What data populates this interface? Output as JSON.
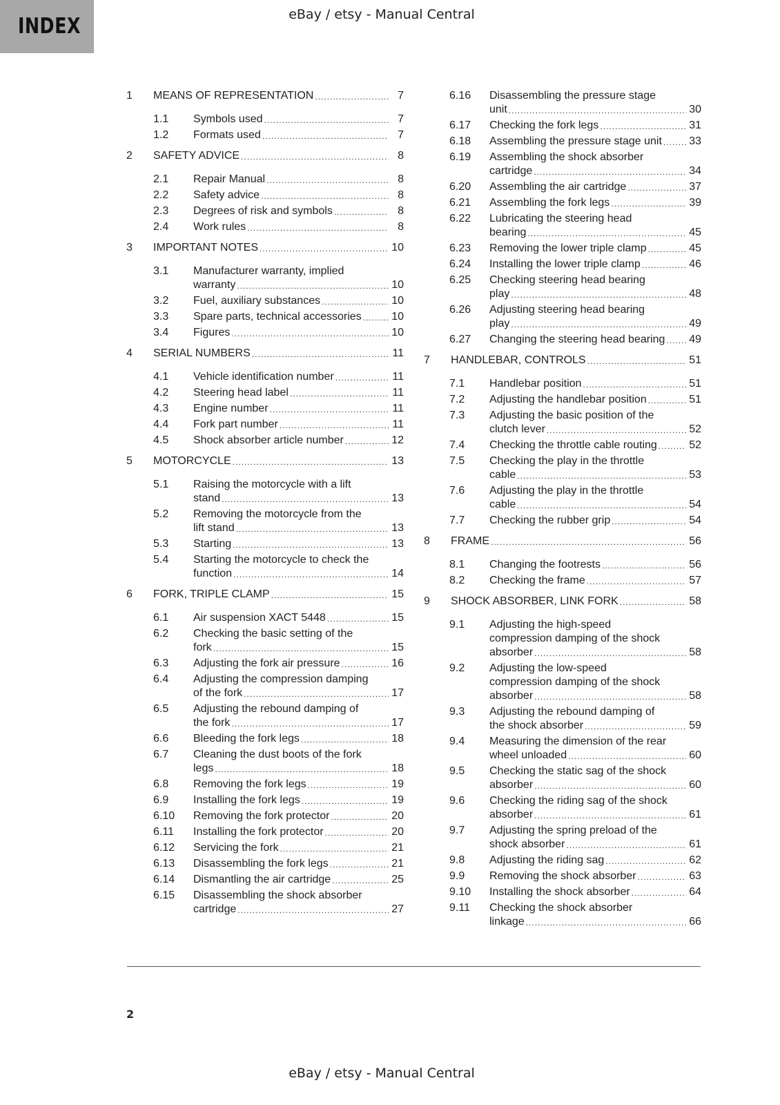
{
  "header": {
    "section_label": "INDEX",
    "watermark": "eBay / etsy - Manual Central"
  },
  "footer": {
    "page_number": "2",
    "watermark": "eBay / etsy - Manual Central"
  },
  "columns": [
    [
      {
        "level": "chapter",
        "num": "1",
        "lines": [
          "MEANS OF REPRESENTATION"
        ],
        "page": "7"
      },
      {
        "level": "sub",
        "num": "1.1",
        "lines": [
          "Symbols used"
        ],
        "page": "7"
      },
      {
        "level": "sub",
        "num": "1.2",
        "lines": [
          "Formats used"
        ],
        "page": "7"
      },
      {
        "level": "chapter",
        "num": "2",
        "lines": [
          "SAFETY ADVICE"
        ],
        "page": "8"
      },
      {
        "level": "sub",
        "num": "2.1",
        "lines": [
          "Repair Manual"
        ],
        "page": "8"
      },
      {
        "level": "sub",
        "num": "2.2",
        "lines": [
          "Safety advice"
        ],
        "page": "8"
      },
      {
        "level": "sub",
        "num": "2.3",
        "lines": [
          "Degrees of risk and symbols"
        ],
        "page": "8"
      },
      {
        "level": "sub",
        "num": "2.4",
        "lines": [
          "Work rules"
        ],
        "page": "8"
      },
      {
        "level": "chapter",
        "num": "3",
        "lines": [
          "IMPORTANT NOTES"
        ],
        "page": "10"
      },
      {
        "level": "sub",
        "num": "3.1",
        "lines": [
          "Manufacturer warranty, implied",
          "warranty"
        ],
        "page": "10"
      },
      {
        "level": "sub",
        "num": "3.2",
        "lines": [
          "Fuel, auxiliary substances"
        ],
        "page": "10"
      },
      {
        "level": "sub",
        "num": "3.3",
        "lines": [
          "Spare parts, technical accessories"
        ],
        "page": "10"
      },
      {
        "level": "sub",
        "num": "3.4",
        "lines": [
          "Figures"
        ],
        "page": "10"
      },
      {
        "level": "chapter",
        "num": "4",
        "lines": [
          "SERIAL NUMBERS"
        ],
        "page": "11"
      },
      {
        "level": "sub",
        "num": "4.1",
        "lines": [
          "Vehicle identification number"
        ],
        "page": "11"
      },
      {
        "level": "sub",
        "num": "4.2",
        "lines": [
          "Steering head label"
        ],
        "page": "11"
      },
      {
        "level": "sub",
        "num": "4.3",
        "lines": [
          "Engine number"
        ],
        "page": "11"
      },
      {
        "level": "sub",
        "num": "4.4",
        "lines": [
          "Fork part number"
        ],
        "page": "11"
      },
      {
        "level": "sub",
        "num": "4.5",
        "lines": [
          "Shock absorber article number"
        ],
        "page": "12"
      },
      {
        "level": "chapter",
        "num": "5",
        "lines": [
          "MOTORCYCLE"
        ],
        "page": "13"
      },
      {
        "level": "sub",
        "num": "5.1",
        "lines": [
          "Raising the motorcycle with a lift",
          "stand"
        ],
        "page": "13"
      },
      {
        "level": "sub",
        "num": "5.2",
        "lines": [
          "Removing the motorcycle from the",
          "lift stand"
        ],
        "page": "13"
      },
      {
        "level": "sub",
        "num": "5.3",
        "lines": [
          "Starting"
        ],
        "page": "13"
      },
      {
        "level": "sub",
        "num": "5.4",
        "lines": [
          "Starting the motorcycle to check the",
          "function"
        ],
        "page": "14"
      },
      {
        "level": "chapter",
        "num": "6",
        "lines": [
          "FORK, TRIPLE CLAMP"
        ],
        "page": "15"
      },
      {
        "level": "sub",
        "num": "6.1",
        "lines": [
          "Air suspension XACT 5448"
        ],
        "page": "15"
      },
      {
        "level": "sub",
        "num": "6.2",
        "lines": [
          "Checking the basic setting of the",
          "fork"
        ],
        "page": "15"
      },
      {
        "level": "sub",
        "num": "6.3",
        "lines": [
          "Adjusting the fork air pressure"
        ],
        "page": "16"
      },
      {
        "level": "sub",
        "num": "6.4",
        "lines": [
          "Adjusting the compression damping",
          "of the fork"
        ],
        "page": "17"
      },
      {
        "level": "sub",
        "num": "6.5",
        "lines": [
          "Adjusting the rebound damping of",
          "the fork"
        ],
        "page": "17"
      },
      {
        "level": "sub",
        "num": "6.6",
        "lines": [
          "Bleeding the fork legs"
        ],
        "page": "18"
      },
      {
        "level": "sub",
        "num": "6.7",
        "lines": [
          "Cleaning the dust boots of the fork",
          "legs"
        ],
        "page": "18"
      },
      {
        "level": "sub",
        "num": "6.8",
        "lines": [
          "Removing the fork legs"
        ],
        "page": "19"
      },
      {
        "level": "sub",
        "num": "6.9",
        "lines": [
          "Installing the fork legs"
        ],
        "page": "19"
      },
      {
        "level": "sub",
        "num": "6.10",
        "lines": [
          "Removing the fork protector"
        ],
        "page": "20"
      },
      {
        "level": "sub",
        "num": "6.11",
        "lines": [
          "Installing the fork protector"
        ],
        "page": "20"
      },
      {
        "level": "sub",
        "num": "6.12",
        "lines": [
          "Servicing the fork"
        ],
        "page": "21"
      },
      {
        "level": "sub",
        "num": "6.13",
        "lines": [
          "Disassembling the fork legs"
        ],
        "page": "21"
      },
      {
        "level": "sub",
        "num": "6.14",
        "lines": [
          "Dismantling the air cartridge"
        ],
        "page": "25"
      },
      {
        "level": "sub",
        "num": "6.15",
        "lines": [
          "Disassembling the shock absorber",
          "cartridge"
        ],
        "page": "27"
      }
    ],
    [
      {
        "level": "sub",
        "num": "6.16",
        "lines": [
          "Disassembling the pressure stage",
          "unit"
        ],
        "page": "30"
      },
      {
        "level": "sub",
        "num": "6.17",
        "lines": [
          "Checking the fork legs"
        ],
        "page": "31"
      },
      {
        "level": "sub",
        "num": "6.18",
        "lines": [
          "Assembling the pressure stage unit"
        ],
        "page": "33"
      },
      {
        "level": "sub",
        "num": "6.19",
        "lines": [
          "Assembling the shock absorber",
          "cartridge"
        ],
        "page": "34"
      },
      {
        "level": "sub",
        "num": "6.20",
        "lines": [
          "Assembling the air cartridge"
        ],
        "page": "37"
      },
      {
        "level": "sub",
        "num": "6.21",
        "lines": [
          "Assembling the fork legs"
        ],
        "page": "39"
      },
      {
        "level": "sub",
        "num": "6.22",
        "lines": [
          "Lubricating the steering head",
          "bearing"
        ],
        "page": "45"
      },
      {
        "level": "sub",
        "num": "6.23",
        "lines": [
          "Removing the lower triple clamp"
        ],
        "page": "45"
      },
      {
        "level": "sub",
        "num": "6.24",
        "lines": [
          "Installing the lower triple clamp"
        ],
        "page": "46"
      },
      {
        "level": "sub",
        "num": "6.25",
        "lines": [
          "Checking steering head bearing",
          "play"
        ],
        "page": "48"
      },
      {
        "level": "sub",
        "num": "6.26",
        "lines": [
          "Adjusting steering head bearing",
          "play"
        ],
        "page": "49"
      },
      {
        "level": "sub",
        "num": "6.27",
        "lines": [
          "Changing the steering head bearing"
        ],
        "page": "49"
      },
      {
        "level": "chapter",
        "num": "7",
        "lines": [
          "HANDLEBAR, CONTROLS"
        ],
        "page": "51"
      },
      {
        "level": "sub",
        "num": "7.1",
        "lines": [
          "Handlebar position"
        ],
        "page": "51"
      },
      {
        "level": "sub",
        "num": "7.2",
        "lines": [
          "Adjusting the handlebar position"
        ],
        "page": "51"
      },
      {
        "level": "sub",
        "num": "7.3",
        "lines": [
          "Adjusting the basic position of the",
          "clutch lever"
        ],
        "page": "52"
      },
      {
        "level": "sub",
        "num": "7.4",
        "lines": [
          "Checking the throttle cable routing"
        ],
        "page": "52"
      },
      {
        "level": "sub",
        "num": "7.5",
        "lines": [
          "Checking the play in the throttle",
          "cable"
        ],
        "page": "53"
      },
      {
        "level": "sub",
        "num": "7.6",
        "lines": [
          "Adjusting the play in the throttle",
          "cable"
        ],
        "page": "54"
      },
      {
        "level": "sub",
        "num": "7.7",
        "lines": [
          "Checking the rubber grip"
        ],
        "page": "54"
      },
      {
        "level": "chapter",
        "num": "8",
        "lines": [
          "FRAME"
        ],
        "page": "56"
      },
      {
        "level": "sub",
        "num": "8.1",
        "lines": [
          "Changing the footrests"
        ],
        "page": "56"
      },
      {
        "level": "sub",
        "num": "8.2",
        "lines": [
          "Checking the frame"
        ],
        "page": "57"
      },
      {
        "level": "chapter",
        "num": "9",
        "lines": [
          "SHOCK ABSORBER, LINK FORK"
        ],
        "page": "58"
      },
      {
        "level": "sub",
        "num": "9.1",
        "lines": [
          "Adjusting the high-speed",
          "compression damping of the shock",
          "absorber"
        ],
        "page": "58"
      },
      {
        "level": "sub",
        "num": "9.2",
        "lines": [
          "Adjusting the low-speed",
          "compression damping of the shock",
          "absorber"
        ],
        "page": "58"
      },
      {
        "level": "sub",
        "num": "9.3",
        "lines": [
          "Adjusting the rebound damping of",
          "the shock absorber"
        ],
        "page": "59"
      },
      {
        "level": "sub",
        "num": "9.4",
        "lines": [
          "Measuring the dimension of the rear",
          "wheel unloaded"
        ],
        "page": "60"
      },
      {
        "level": "sub",
        "num": "9.5",
        "lines": [
          "Checking the static sag of the shock",
          "absorber"
        ],
        "page": "60"
      },
      {
        "level": "sub",
        "num": "9.6",
        "lines": [
          "Checking the riding sag of the shock",
          "absorber"
        ],
        "page": "61"
      },
      {
        "level": "sub",
        "num": "9.7",
        "lines": [
          "Adjusting the spring preload of the",
          "shock absorber"
        ],
        "page": "61"
      },
      {
        "level": "sub",
        "num": "9.8",
        "lines": [
          "Adjusting the riding sag"
        ],
        "page": "62"
      },
      {
        "level": "sub",
        "num": "9.9",
        "lines": [
          "Removing the shock absorber"
        ],
        "page": "63"
      },
      {
        "level": "sub",
        "num": "9.10",
        "lines": [
          "Installing the shock absorber"
        ],
        "page": "64"
      },
      {
        "level": "sub",
        "num": "9.11",
        "lines": [
          "Checking the shock absorber",
          "linkage"
        ],
        "page": "66"
      }
    ]
  ]
}
